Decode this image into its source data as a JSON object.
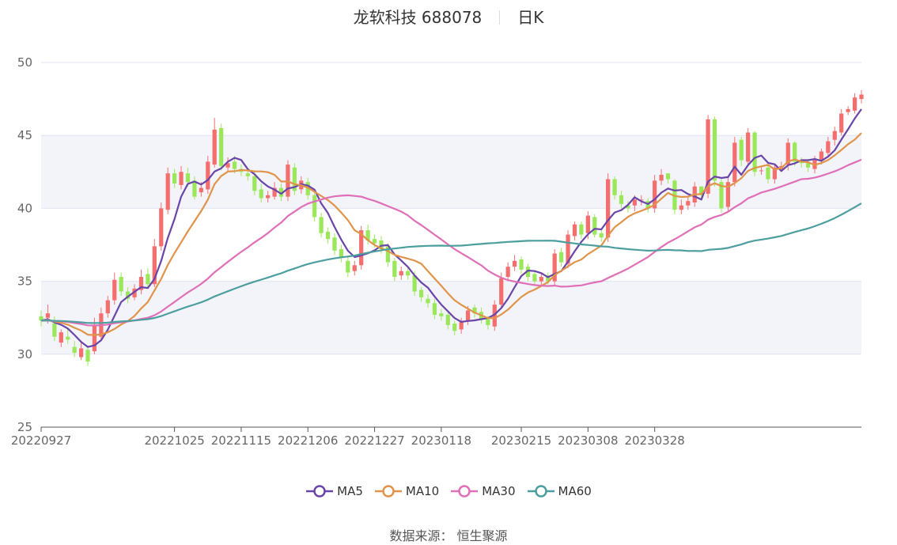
{
  "header": {
    "name": "龙软科技 688078",
    "period": "日K"
  },
  "footer": {
    "source_label": "数据来源：",
    "source_name": "恒生聚源"
  },
  "legend": [
    {
      "name": "MA5",
      "color": "#6a45a8"
    },
    {
      "name": "MA10",
      "color": "#e0944a"
    },
    {
      "name": "MA30",
      "color": "#df6fb6"
    },
    {
      "name": "MA60",
      "color": "#4d9e9e"
    }
  ],
  "colors": {
    "up": "#f46e6e",
    "down": "#9ae85a",
    "band": "#f3f4fa",
    "grid": "#e0e4f0"
  },
  "chart_data": {
    "type": "candlestick",
    "yticks": [
      25,
      30,
      35,
      40,
      45,
      50
    ],
    "ylim": [
      25,
      50
    ],
    "xtick_labels": [
      "20220927",
      "20221025",
      "20221115",
      "20221206",
      "20221227",
      "20230118",
      "20230215",
      "20230308",
      "20230328"
    ],
    "xtick_index": [
      0,
      20,
      30,
      40,
      50,
      60,
      72,
      82,
      92
    ],
    "closes": [
      32.3,
      32.8,
      31.2,
      31.5,
      31.0,
      30.1,
      30.4,
      29.5,
      32.0,
      32.8,
      33.7,
      35.1,
      34.3,
      33.8,
      34.5,
      35.3,
      34.8,
      37.4,
      40.0,
      42.4,
      41.7,
      42.5,
      41.8,
      40.8,
      41.4,
      43.2,
      45.4,
      42.9,
      43.1,
      42.7,
      42.5,
      42.2,
      41.2,
      40.7,
      40.9,
      41.4,
      40.8,
      43.0,
      41.2,
      41.9,
      40.9,
      39.4,
      38.3,
      37.9,
      37.1,
      36.6,
      35.6,
      36.1,
      38.5,
      37.8,
      37.6,
      37.2,
      36.3,
      35.3,
      35.7,
      35.4,
      34.3,
      33.9,
      33.5,
      32.7,
      32.6,
      32.0,
      31.6,
      32.2,
      33.0,
      32.8,
      32.4,
      32.0,
      33.4,
      35.2,
      36.0,
      36.4,
      35.8,
      35.3,
      35.0,
      35.3,
      35.0,
      36.9,
      36.3,
      38.2,
      38.9,
      38.2,
      39.5,
      38.2,
      38.0,
      42.0,
      40.9,
      40.3,
      40.0,
      40.6,
      40.6,
      40.0,
      41.9,
      42.3,
      42.0,
      39.9,
      40.2,
      40.5,
      41.5,
      40.9,
      46.1,
      41.9,
      40.0,
      41.8,
      44.5,
      43.3,
      45.2,
      42.5,
      42.6,
      42.0,
      42.8,
      42.9,
      44.5,
      43.2,
      43.1,
      42.8,
      43.3,
      43.9,
      44.6,
      45.3,
      46.5,
      46.8,
      47.6,
      47.8
    ],
    "opens": [
      32.6,
      32.5,
      32.1,
      30.8,
      31.2,
      30.5,
      29.8,
      30.3,
      30.2,
      31.2,
      32.8,
      33.7,
      35.3,
      34.3,
      33.9,
      34.4,
      35.5,
      34.8,
      37.4,
      39.9,
      42.4,
      41.6,
      42.4,
      41.9,
      41.1,
      41.3,
      43.0,
      45.5,
      42.8,
      43.2,
      42.7,
      42.4,
      42.2,
      41.3,
      40.7,
      40.8,
      41.4,
      40.8,
      42.8,
      41.3,
      41.8,
      40.9,
      39.4,
      38.4,
      38.0,
      37.2,
      36.4,
      35.7,
      36.1,
      38.5,
      37.9,
      37.8,
      37.4,
      36.4,
      35.4,
      35.7,
      35.4,
      34.4,
      33.8,
      33.5,
      32.8,
      32.7,
      32.1,
      31.7,
      32.3,
      33.2,
      32.9,
      32.4,
      31.9,
      33.4,
      35.3,
      36.0,
      36.5,
      36.0,
      35.5,
      35.0,
      35.4,
      35.0,
      37.0,
      36.2,
      38.1,
      38.9,
      38.3,
      39.4,
      38.3,
      38.0,
      42.0,
      40.9,
      40.2,
      40.2,
      40.6,
      40.5,
      40.0,
      41.9,
      42.4,
      41.9,
      39.9,
      40.2,
      40.4,
      41.5,
      41.0,
      46.1,
      41.8,
      40.1,
      41.8,
      44.7,
      43.2,
      45.2,
      42.6,
      42.8,
      42.0,
      42.7,
      43.0,
      44.5,
      43.3,
      43.1,
      42.7,
      43.3,
      43.8,
      44.7,
      45.2,
      46.6,
      46.7,
      47.5
    ],
    "highs": [
      33.0,
      33.4,
      32.6,
      31.7,
      31.8,
      30.9,
      30.8,
      30.6,
      32.5,
      33.2,
      34.0,
      35.6,
      35.6,
      34.6,
      34.8,
      35.8,
      35.9,
      37.9,
      40.4,
      42.8,
      42.7,
      42.9,
      42.8,
      42.2,
      41.8,
      43.6,
      46.2,
      45.8,
      43.5,
      43.6,
      43.0,
      42.7,
      42.5,
      41.7,
      41.2,
      41.8,
      41.7,
      43.3,
      43.1,
      42.2,
      42.1,
      41.2,
      39.7,
      38.7,
      38.3,
      37.5,
      36.7,
      36.4,
      38.8,
      38.9,
      38.2,
      38.1,
      37.6,
      36.6,
      36.0,
      36.0,
      35.7,
      34.6,
      34.1,
      33.8,
      33.1,
      32.9,
      32.3,
      32.5,
      33.3,
      33.4,
      33.2,
      32.6,
      33.7,
      35.6,
      36.3,
      36.8,
      36.7,
      36.2,
      35.7,
      35.6,
      35.6,
      37.2,
      37.3,
      38.5,
      39.1,
      39.1,
      39.8,
      39.6,
      38.5,
      42.4,
      42.2,
      41.2,
      40.5,
      40.9,
      40.9,
      40.7,
      42.3,
      42.7,
      42.4,
      42.0,
      40.6,
      40.8,
      41.8,
      41.5,
      46.4,
      46.3,
      42.0,
      42.1,
      44.9,
      44.9,
      45.5,
      45.3,
      42.9,
      43.0,
      43.0,
      43.2,
      44.8,
      44.6,
      43.5,
      43.3,
      43.6,
      44.1,
      44.9,
      45.6,
      46.8,
      47.0,
      47.9,
      48.1
    ],
    "lows": [
      31.9,
      32.1,
      30.9,
      30.5,
      30.7,
      29.8,
      29.6,
      29.2,
      30.0,
      30.9,
      32.5,
      33.4,
      34.0,
      33.5,
      33.7,
      34.1,
      34.5,
      34.6,
      37.1,
      39.6,
      41.4,
      41.3,
      41.5,
      40.6,
      40.8,
      41.0,
      42.8,
      42.6,
      42.5,
      42.4,
      42.2,
      41.9,
      40.9,
      40.4,
      40.4,
      40.6,
      40.5,
      40.5,
      40.9,
      41.0,
      40.6,
      39.1,
      38.0,
      37.6,
      36.8,
      36.3,
      35.3,
      35.4,
      35.8,
      37.5,
      37.3,
      36.9,
      36.0,
      35.0,
      35.1,
      35.1,
      34.0,
      33.6,
      33.2,
      32.4,
      32.3,
      31.7,
      31.3,
      31.4,
      32.0,
      32.5,
      32.1,
      31.7,
      31.6,
      33.1,
      35.0,
      35.7,
      35.5,
      35.0,
      34.7,
      34.7,
      34.8,
      34.7,
      36.0,
      35.9,
      37.8,
      37.9,
      37.9,
      38.0,
      37.7,
      37.7,
      40.6,
      40.0,
      39.7,
      39.8,
      40.2,
      39.7,
      39.7,
      41.6,
      41.7,
      39.6,
      39.6,
      39.9,
      40.1,
      40.6,
      40.7,
      41.5,
      39.7,
      39.8,
      41.5,
      42.9,
      42.9,
      42.2,
      42.3,
      41.7,
      41.7,
      42.5,
      42.6,
      42.9,
      42.8,
      42.5,
      42.4,
      43.0,
      43.5,
      44.3,
      45.0,
      46.4,
      46.5,
      47.2
    ]
  }
}
